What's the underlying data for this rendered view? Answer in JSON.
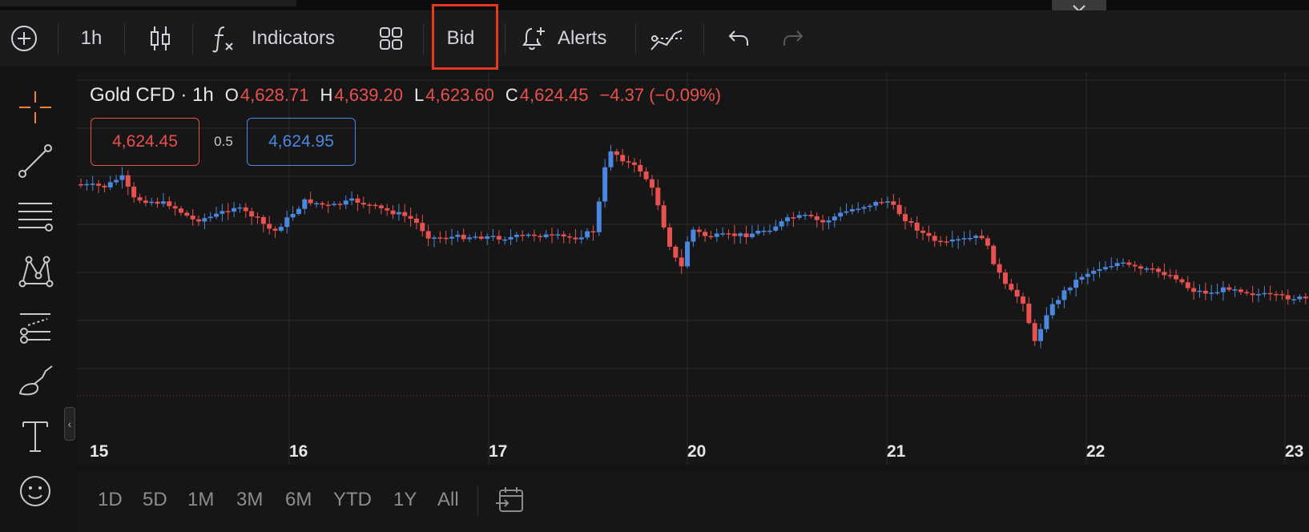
{
  "toolbar": {
    "interval": "1h",
    "indicators_label": "Indicators",
    "bid_label": "Bid",
    "alerts_label": "Alerts"
  },
  "legend": {
    "symbol": "Gold CFD · 1h",
    "o_label": "O",
    "o_value": "4,628.71",
    "h_label": "H",
    "h_value": "4,639.20",
    "l_label": "L",
    "l_value": "4,623.60",
    "c_label": "C",
    "c_value": "4,624.45",
    "change": "−4.37 (−0.09%)"
  },
  "quote": {
    "sell": "4,624.45",
    "spread": "0.5",
    "buy": "4,624.95"
  },
  "x_axis": [
    "15",
    "16",
    "17",
    "20",
    "21",
    "22",
    "23"
  ],
  "periods": [
    "1D",
    "5D",
    "1M",
    "3M",
    "6M",
    "YTD",
    "1Y",
    "All"
  ],
  "colors": {
    "up": "#4a88e0",
    "down": "#e8514f",
    "highlight": "#e5391f"
  },
  "icons": {
    "toolbar": [
      "add-symbol-icon",
      "candles-icon",
      "fx-icon",
      "layouts-icon",
      "alert-add-icon",
      "compare-icon",
      "undo-icon",
      "redo-icon"
    ],
    "left_tools": [
      "crosshair-icon",
      "trend-line-icon",
      "horizontal-lines-icon",
      "pattern-icon",
      "forecast-icon",
      "brush-icon",
      "text-icon",
      "emoji-icon"
    ],
    "bottom": [
      "goto-date-icon"
    ]
  }
}
